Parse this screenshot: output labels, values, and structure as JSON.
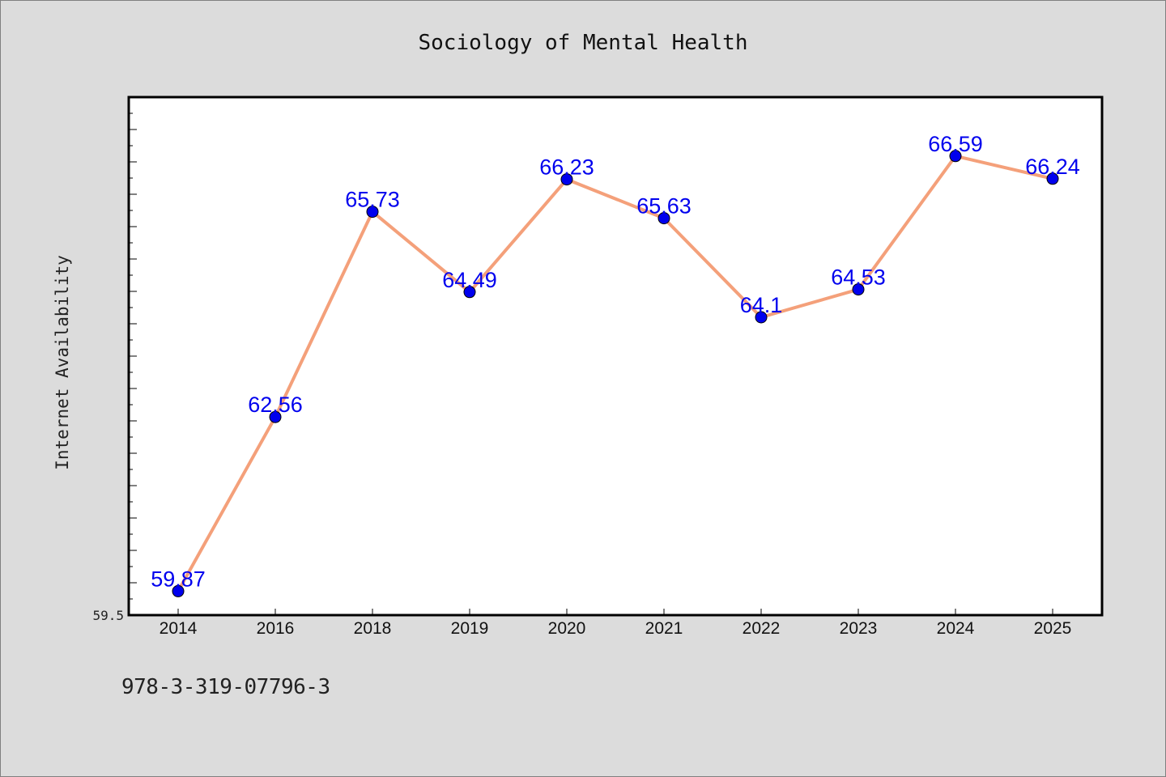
{
  "chart_data": {
    "type": "line",
    "title": "Sociology of Mental Health",
    "xlabel": "",
    "ylabel": "Internet Availability",
    "categories": [
      "2014",
      "2016",
      "2018",
      "2019",
      "2020",
      "2021",
      "2022",
      "2023",
      "2024",
      "2025"
    ],
    "series": [
      {
        "values": [
          59.87,
          62.56,
          65.73,
          64.49,
          66.23,
          65.63,
          64.1,
          64.53,
          66.59,
          66.24
        ]
      }
    ],
    "y_tick_labels": [
      "59.5"
    ],
    "ylim": [
      59.5,
      67.5
    ],
    "grid": false,
    "line_color": "#f4a07a",
    "marker_color": "#0000ee",
    "label_color": "#0000ee"
  },
  "footer": {
    "isbn": "978-3-319-07796-3"
  }
}
